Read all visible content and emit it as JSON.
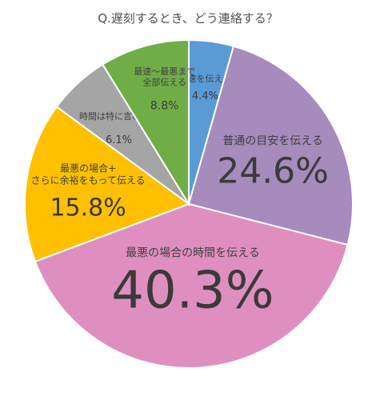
{
  "chart_data": {
    "type": "pie",
    "title": "Q.遅刻するとき、どう連絡する？",
    "start": "12 o'clock",
    "direction": "clockwise",
    "slices": [
      {
        "label": "最速を伝える",
        "value": 4.4,
        "value_label": "4.4%",
        "color": "#5b9bd5"
      },
      {
        "label": "普通の目安を伝える",
        "value": 24.6,
        "value_label": "24.6%",
        "color": "#a68bbd"
      },
      {
        "label": "最悪の場合の時間を伝える",
        "value": 40.3,
        "value_label": "40.3%",
        "color": "#df8fbf"
      },
      {
        "label": "最悪の場合+\nさらに余裕をもって伝える",
        "value": 15.8,
        "value_label": "15.8%",
        "color": "#fec000"
      },
      {
        "label": "時間は特に言わない",
        "value": 6.1,
        "value_label": "6.1%",
        "color": "#a5a5a5"
      },
      {
        "label": "最速〜最悪まで\n全部伝える",
        "value": 8.8,
        "value_label": "8.8%",
        "color": "#70ad47"
      }
    ]
  }
}
